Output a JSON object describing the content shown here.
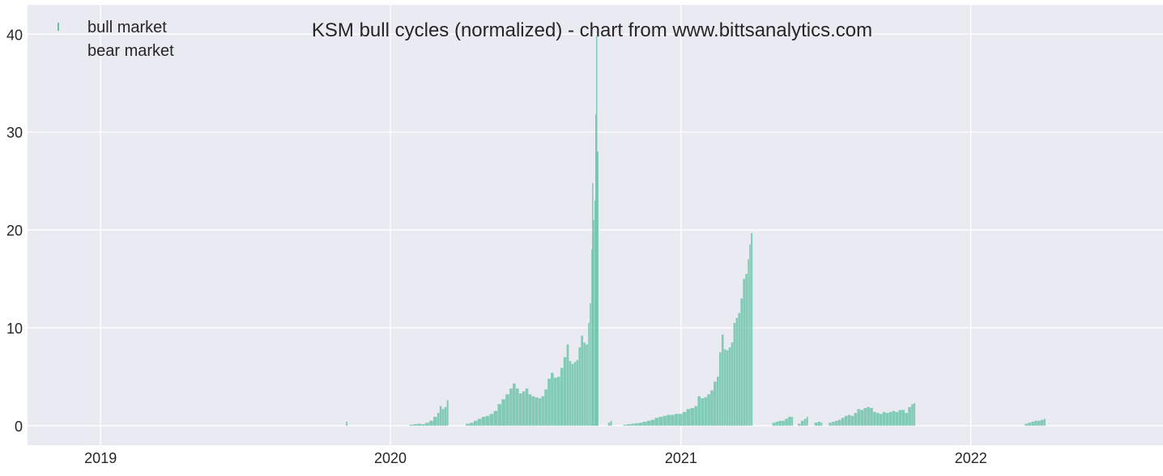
{
  "chart_data": {
    "type": "bar",
    "title": "KSM bull cycles (normalized)  - chart from www.bittsanalytics.com",
    "xlabel": "",
    "ylabel": "",
    "x_range": [
      "2018-10-01",
      "2022-08-31"
    ],
    "ylim": [
      -2,
      43
    ],
    "yticks": [
      "0",
      "10",
      "20",
      "30",
      "40"
    ],
    "xticks": [
      {
        "date": "2019-01-01",
        "label": "2019"
      },
      {
        "date": "2020-01-01",
        "label": "2020"
      },
      {
        "date": "2021-01-01",
        "label": "2021"
      },
      {
        "date": "2022-01-01",
        "label": "2022"
      }
    ],
    "grid": true,
    "background_color": "#eaeaf2",
    "legend": {
      "placement": "top-left",
      "entries": [
        "bull market",
        "bear market"
      ]
    },
    "colors": {
      "bull": "#66c2a5",
      "bear": "#fc8d62"
    },
    "series": [
      {
        "name": "bull market",
        "points": [
          [
            "2019-11-06",
            0.4
          ],
          [
            "2020-01-25",
            0.1
          ],
          [
            "2020-01-30",
            0.15
          ],
          [
            "2020-02-04",
            0.2
          ],
          [
            "2020-02-09",
            0.15
          ],
          [
            "2020-02-14",
            0.3
          ],
          [
            "2020-02-19",
            0.5
          ],
          [
            "2020-02-24",
            0.9
          ],
          [
            "2020-02-29",
            1.3
          ],
          [
            "2020-03-03",
            2.0
          ],
          [
            "2020-03-06",
            1.7
          ],
          [
            "2020-03-09",
            1.9
          ],
          [
            "2020-03-12",
            2.6
          ],
          [
            "2020-04-05",
            0.2
          ],
          [
            "2020-04-10",
            0.3
          ],
          [
            "2020-04-15",
            0.5
          ],
          [
            "2020-04-20",
            0.7
          ],
          [
            "2020-04-25",
            0.9
          ],
          [
            "2020-04-30",
            1.0
          ],
          [
            "2020-05-05",
            1.2
          ],
          [
            "2020-05-10",
            1.5
          ],
          [
            "2020-05-15",
            2.2
          ],
          [
            "2020-05-20",
            2.7
          ],
          [
            "2020-05-25",
            3.2
          ],
          [
            "2020-05-30",
            3.8
          ],
          [
            "2020-06-03",
            4.3
          ],
          [
            "2020-06-07",
            3.8
          ],
          [
            "2020-06-11",
            3.3
          ],
          [
            "2020-06-15",
            3.5
          ],
          [
            "2020-06-19",
            3.8
          ],
          [
            "2020-06-23",
            3.2
          ],
          [
            "2020-06-27",
            3.0
          ],
          [
            "2020-07-01",
            2.9
          ],
          [
            "2020-07-05",
            2.8
          ],
          [
            "2020-07-09",
            3.0
          ],
          [
            "2020-07-13",
            3.7
          ],
          [
            "2020-07-17",
            4.8
          ],
          [
            "2020-07-21",
            5.4
          ],
          [
            "2020-07-25",
            4.9
          ],
          [
            "2020-07-29",
            5.0
          ],
          [
            "2020-08-02",
            5.9
          ],
          [
            "2020-08-06",
            7.0
          ],
          [
            "2020-08-10",
            8.3
          ],
          [
            "2020-08-13",
            6.6
          ],
          [
            "2020-08-16",
            6.3
          ],
          [
            "2020-08-19",
            6.5
          ],
          [
            "2020-08-22",
            6.7
          ],
          [
            "2020-08-25",
            8.0
          ],
          [
            "2020-08-28",
            9.2
          ],
          [
            "2020-08-31",
            8.5
          ],
          [
            "2020-09-03",
            8.3
          ],
          [
            "2020-09-06",
            10.5
          ],
          [
            "2020-09-08",
            12.5
          ],
          [
            "2020-09-10",
            18.0
          ],
          [
            "2020-09-11",
            24.8
          ],
          [
            "2020-09-12",
            21.0
          ],
          [
            "2020-09-14",
            23.0
          ],
          [
            "2020-09-15",
            31.8
          ],
          [
            "2020-09-16",
            39.8
          ],
          [
            "2020-09-17",
            28.0
          ],
          [
            "2020-10-01",
            0.3
          ],
          [
            "2020-10-04",
            0.5
          ],
          [
            "2020-10-20",
            0.1
          ],
          [
            "2020-10-25",
            0.15
          ],
          [
            "2020-10-30",
            0.2
          ],
          [
            "2020-11-04",
            0.25
          ],
          [
            "2020-11-09",
            0.3
          ],
          [
            "2020-11-14",
            0.4
          ],
          [
            "2020-11-19",
            0.5
          ],
          [
            "2020-11-24",
            0.6
          ],
          [
            "2020-11-29",
            0.8
          ],
          [
            "2020-12-04",
            0.9
          ],
          [
            "2020-12-09",
            1.0
          ],
          [
            "2020-12-14",
            1.1
          ],
          [
            "2020-12-19",
            1.1
          ],
          [
            "2020-12-24",
            1.2
          ],
          [
            "2020-12-29",
            1.2
          ],
          [
            "2021-01-03",
            1.4
          ],
          [
            "2021-01-08",
            1.7
          ],
          [
            "2021-01-13",
            1.8
          ],
          [
            "2021-01-18",
            2.0
          ],
          [
            "2021-01-22",
            3.0
          ],
          [
            "2021-01-26",
            2.8
          ],
          [
            "2021-01-30",
            2.9
          ],
          [
            "2021-02-03",
            3.2
          ],
          [
            "2021-02-07",
            3.6
          ],
          [
            "2021-02-11",
            4.5
          ],
          [
            "2021-02-15",
            5.0
          ],
          [
            "2021-02-18",
            7.5
          ],
          [
            "2021-02-21",
            9.3
          ],
          [
            "2021-02-24",
            7.8
          ],
          [
            "2021-02-27",
            7.7
          ],
          [
            "2021-03-02",
            8.0
          ],
          [
            "2021-03-05",
            8.5
          ],
          [
            "2021-03-08",
            10.5
          ],
          [
            "2021-03-11",
            11.0
          ],
          [
            "2021-03-14",
            11.5
          ],
          [
            "2021-03-17",
            13.0
          ],
          [
            "2021-03-20",
            15.0
          ],
          [
            "2021-03-23",
            15.5
          ],
          [
            "2021-03-26",
            17.0
          ],
          [
            "2021-03-28",
            18.5
          ],
          [
            "2021-03-30",
            19.7
          ],
          [
            "2021-04-26",
            0.3
          ],
          [
            "2021-04-30",
            0.4
          ],
          [
            "2021-05-04",
            0.5
          ],
          [
            "2021-05-08",
            0.5
          ],
          [
            "2021-05-12",
            0.7
          ],
          [
            "2021-05-16",
            0.9
          ],
          [
            "2021-05-20",
            0.9
          ],
          [
            "2021-05-28",
            0.2
          ],
          [
            "2021-06-01",
            0.5
          ],
          [
            "2021-06-05",
            0.7
          ],
          [
            "2021-06-08",
            0.9
          ],
          [
            "2021-06-18",
            0.3
          ],
          [
            "2021-06-22",
            0.4
          ],
          [
            "2021-06-26",
            0.3
          ],
          [
            "2021-07-06",
            0.3
          ],
          [
            "2021-07-10",
            0.4
          ],
          [
            "2021-07-14",
            0.5
          ],
          [
            "2021-07-18",
            0.6
          ],
          [
            "2021-07-22",
            0.8
          ],
          [
            "2021-07-26",
            1.0
          ],
          [
            "2021-07-30",
            1.1
          ],
          [
            "2021-08-03",
            1.0
          ],
          [
            "2021-08-07",
            1.3
          ],
          [
            "2021-08-11",
            1.7
          ],
          [
            "2021-08-15",
            1.6
          ],
          [
            "2021-08-19",
            1.8
          ],
          [
            "2021-08-23",
            1.9
          ],
          [
            "2021-08-27",
            1.8
          ],
          [
            "2021-08-31",
            1.4
          ],
          [
            "2021-09-04",
            1.3
          ],
          [
            "2021-09-08",
            1.2
          ],
          [
            "2021-09-12",
            1.4
          ],
          [
            "2021-09-16",
            1.3
          ],
          [
            "2021-09-20",
            1.4
          ],
          [
            "2021-09-24",
            1.5
          ],
          [
            "2021-09-28",
            1.4
          ],
          [
            "2021-10-02",
            1.6
          ],
          [
            "2021-10-06",
            1.6
          ],
          [
            "2021-10-10",
            1.3
          ],
          [
            "2021-10-14",
            1.9
          ],
          [
            "2021-10-18",
            2.2
          ],
          [
            "2021-10-21",
            2.3
          ],
          [
            "2022-03-10",
            0.2
          ],
          [
            "2022-03-14",
            0.3
          ],
          [
            "2022-03-18",
            0.4
          ],
          [
            "2022-03-22",
            0.5
          ],
          [
            "2022-03-26",
            0.5
          ],
          [
            "2022-03-30",
            0.6
          ],
          [
            "2022-04-03",
            0.7
          ]
        ]
      },
      {
        "name": "bear market",
        "points": []
      }
    ]
  }
}
